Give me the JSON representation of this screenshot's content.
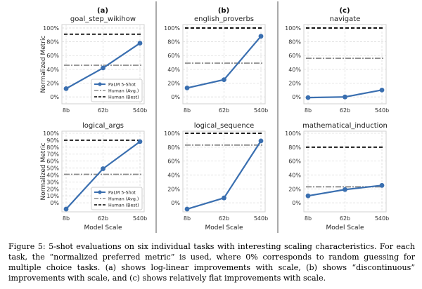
{
  "column_labels": [
    "(a)",
    "(b)",
    "(c)"
  ],
  "chart_data": [
    {
      "type": "line",
      "title": "goal_step_wikihow",
      "categories": [
        "8b",
        "62b",
        "540b"
      ],
      "series": [
        {
          "name": "PaLM 5-Shot",
          "values": [
            12,
            42,
            78
          ]
        }
      ],
      "human_avg": 46,
      "human_best": 91,
      "ylim": [
        -10,
        105
      ],
      "yticks": [
        "0%",
        "20%",
        "40%",
        "60%",
        "80%",
        "100%"
      ],
      "ylabel": "Normalized Metric",
      "xlabel": "",
      "legend": true
    },
    {
      "type": "line",
      "title": "english_proverbs",
      "categories": [
        "8b",
        "62b",
        "540b"
      ],
      "series": [
        {
          "name": "PaLM 5-Shot",
          "values": [
            13,
            25,
            88
          ]
        }
      ],
      "human_avg": 49,
      "human_best": 100,
      "ylim": [
        -10,
        105
      ],
      "yticks": [
        "0%",
        "20%",
        "40%",
        "60%",
        "80%",
        "100%"
      ],
      "ylabel": "",
      "xlabel": "",
      "legend": false
    },
    {
      "type": "line",
      "title": "navigate",
      "categories": [
        "8b",
        "62b",
        "540b"
      ],
      "series": [
        {
          "name": "PaLM 5-Shot",
          "values": [
            -1,
            0,
            10
          ]
        }
      ],
      "human_avg": 56,
      "human_best": 100,
      "ylim": [
        -10,
        105
      ],
      "yticks": [
        "0%",
        "20%",
        "40%",
        "60%",
        "80%",
        "100%"
      ],
      "ylabel": "",
      "xlabel": "",
      "legend": false
    },
    {
      "type": "line",
      "title": "logical_args",
      "categories": [
        "8b",
        "62b",
        "540b"
      ],
      "series": [
        {
          "name": "PaLM 5-Shot",
          "values": [
            -9,
            49,
            88
          ]
        }
      ],
      "human_avg": 41,
      "human_best": 90,
      "ylim": [
        -13,
        103
      ],
      "yticks": [
        "0%",
        "10%",
        "20%",
        "30%",
        "40%",
        "50%",
        "60%",
        "70%",
        "80%",
        "90%",
        "100%"
      ],
      "ylabel": "Normalized Metric",
      "xlabel": "Model Scale",
      "legend": true
    },
    {
      "type": "line",
      "title": "logical_sequence",
      "categories": [
        "8b",
        "62b",
        "540b"
      ],
      "series": [
        {
          "name": "PaLM 5-Shot",
          "values": [
            -9,
            7,
            89
          ]
        }
      ],
      "human_avg": 83,
      "human_best": 100,
      "ylim": [
        -13,
        103
      ],
      "yticks": [
        "0%",
        "20%",
        "40%",
        "60%",
        "80%",
        "100%"
      ],
      "ylabel": "",
      "xlabel": "Model Scale",
      "legend": false
    },
    {
      "type": "line",
      "title": "mathematical_induction",
      "categories": [
        "8b",
        "62b",
        "540b"
      ],
      "series": [
        {
          "name": "PaLM 5-Shot",
          "values": [
            10,
            19,
            25
          ]
        }
      ],
      "human_avg": 23,
      "human_best": 80,
      "ylim": [
        -13,
        103
      ],
      "yticks": [
        "0%",
        "20%",
        "40%",
        "60%",
        "80%",
        "100%"
      ],
      "ylabel": "",
      "xlabel": "Model Scale",
      "legend": false
    }
  ],
  "legend_labels": {
    "model": "PaLM 5-Shot",
    "avg": "Human (Avg.)",
    "best": "Human (Best)"
  },
  "colors": {
    "model": "#3a6fb0",
    "avg": "#8c8c8c",
    "best": "#000000"
  },
  "caption": "Figure 5: 5-shot evaluations on six individual tasks with interesting scaling characteristics. For each task, the “normalized preferred metric” is used, where 0% corresponds to random guessing for multiple choice tasks. (a) shows log-linear improvements with scale, (b) shows “discontinuous” improvements with scale, and (c) shows relatively flat improvements with scale."
}
